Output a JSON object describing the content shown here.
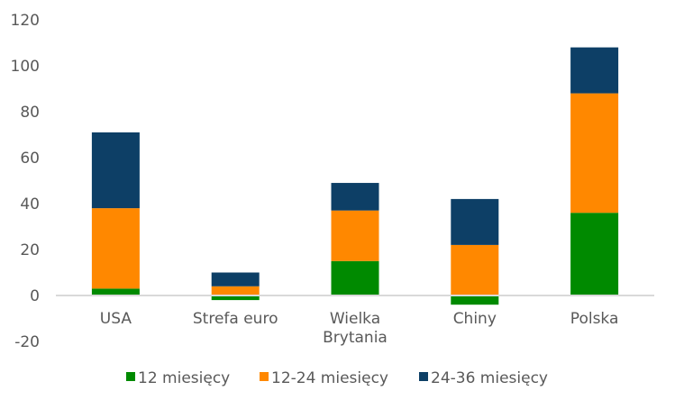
{
  "chart_data": {
    "type": "bar",
    "stacked": true,
    "title": "",
    "xlabel": "",
    "ylabel": "",
    "ylim": [
      -20,
      120
    ],
    "yticks": [
      -20,
      0,
      20,
      40,
      60,
      80,
      100,
      120
    ],
    "grid": false,
    "legend_position": "bottom",
    "categories": [
      [
        "USA"
      ],
      [
        "Strefa euro"
      ],
      [
        "Wielka",
        "Brytania"
      ],
      [
        "Chiny"
      ],
      [
        "Polska"
      ]
    ],
    "series": [
      {
        "name": "12 miesięcy",
        "color": "#008A00",
        "values": [
          3,
          -2,
          15,
          -4,
          36
        ]
      },
      {
        "name": "12-24 miesięcy",
        "color": "#FF8800",
        "values": [
          35,
          4,
          22,
          22,
          52
        ]
      },
      {
        "name": "24-36 miesięcy",
        "color": "#0D3F66",
        "values": [
          33,
          6,
          12,
          20,
          20
        ]
      }
    ]
  }
}
